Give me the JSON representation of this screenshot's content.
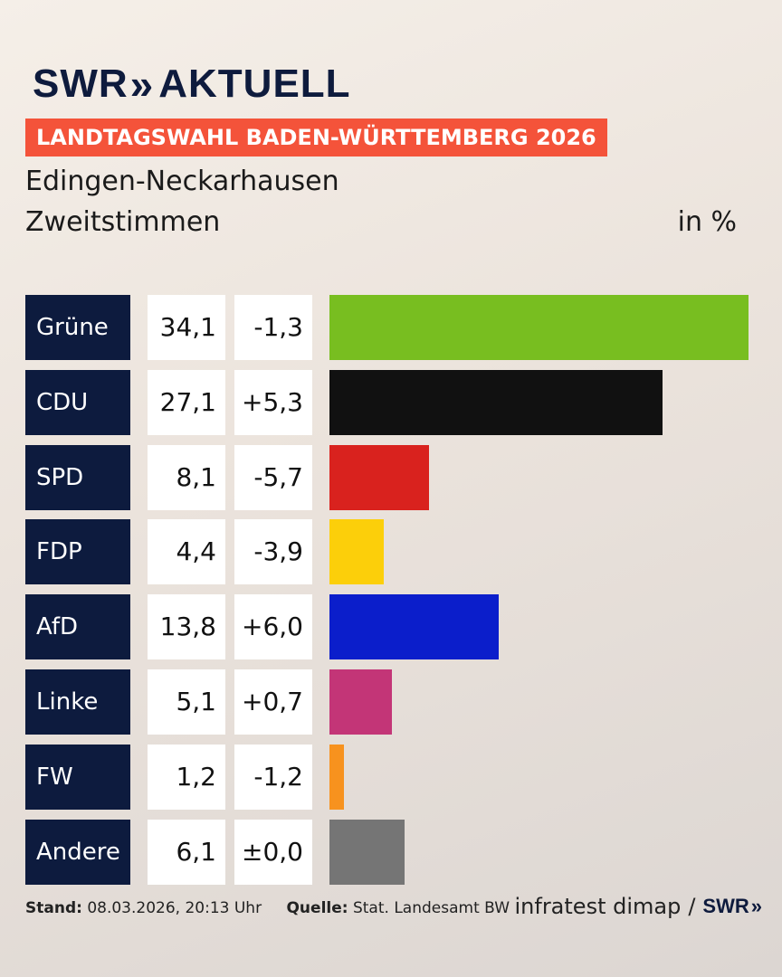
{
  "logo": {
    "swr": "SWR",
    "chevron": "»",
    "aktuell": "AKTUELL"
  },
  "banner": "LANDTAGSWAHL BADEN-WÜRTTEMBERG 2026",
  "location": "Edingen-Neckarhausen",
  "subtitle": "Zweitstimmen",
  "unit": "in %",
  "chart_data": {
    "type": "bar",
    "categories": [
      "Grüne",
      "CDU",
      "SPD",
      "FDP",
      "AfD",
      "Linke",
      "FW",
      "Andere"
    ],
    "values": [
      34.1,
      27.1,
      8.1,
      4.4,
      13.8,
      5.1,
      1.2,
      6.1
    ],
    "value_labels": [
      "34,1",
      "27,1",
      "8,1",
      "4,4",
      "13,8",
      "5,1",
      "1,2",
      "6,1"
    ],
    "diff_labels": [
      "-1,3",
      "+5,3",
      "-5,7",
      "-3,9",
      "+6,0",
      "+0,7",
      "-1,2",
      "±0,0"
    ],
    "colors": [
      "#78be20",
      "#111111",
      "#d9221e",
      "#fccf0a",
      "#0b1ecb",
      "#c33577",
      "#f7921e",
      "#757575"
    ],
    "orientation": "horizontal",
    "xlim": [
      0,
      34.1
    ],
    "grid": false
  },
  "footer": {
    "stand_label": "Stand:",
    "stand_value": "08.03.2026, 20:13 Uhr",
    "source_label": "Quelle:",
    "source_value": "Stat. Landesamt BW"
  },
  "credit": {
    "text": "infratest dimap",
    "sep": "/",
    "swr": "SWR",
    "chevron": "»"
  }
}
